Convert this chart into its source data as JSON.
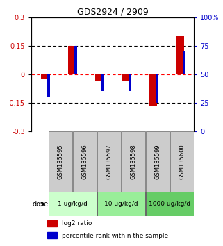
{
  "title": "GDS2924 / 2909",
  "samples": [
    "GSM135595",
    "GSM135596",
    "GSM135597",
    "GSM135598",
    "GSM135599",
    "GSM135600"
  ],
  "log2_ratio": [
    -0.025,
    0.15,
    -0.035,
    -0.035,
    -0.17,
    0.2
  ],
  "percentile_rank": [
    30,
    75,
    35,
    35,
    25,
    70
  ],
  "ylim_left": [
    -0.3,
    0.3
  ],
  "ylim_right": [
    0,
    100
  ],
  "yticks_left": [
    -0.3,
    -0.15,
    0,
    0.15,
    0.3
  ],
  "yticks_right": [
    0,
    25,
    50,
    75,
    100
  ],
  "ytick_labels_left": [
    "-0.3",
    "-0.15",
    "0",
    "0.15",
    "0.3"
  ],
  "ytick_labels_right": [
    "0",
    "25",
    "50",
    "75",
    "100%"
  ],
  "red_color": "#cc0000",
  "blue_color": "#0000cc",
  "group_colors": [
    "#ccffcc",
    "#99ee99",
    "#66cc66"
  ],
  "groups": [
    {
      "label": "1 ug/kg/d",
      "samples": [
        0,
        1
      ]
    },
    {
      "label": "10 ug/kg/d",
      "samples": [
        2,
        3
      ]
    },
    {
      "label": "1000 ug/kg/d",
      "samples": [
        4,
        5
      ]
    }
  ],
  "dose_label": "dose",
  "legend_red": "log2 ratio",
  "legend_blue": "percentile rank within the sample",
  "sample_box_color": "#cccccc",
  "bg_color": "#ffffff"
}
